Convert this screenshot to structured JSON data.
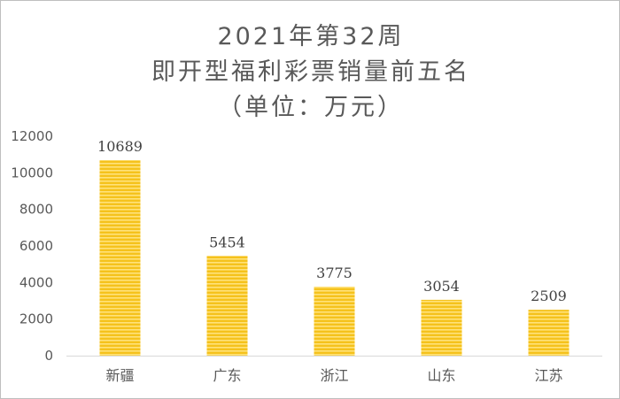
{
  "chart_data": {
    "type": "bar",
    "title_lines": [
      "2021年第32周",
      "即开型福利彩票销量前五名",
      "（单位：万元）"
    ],
    "categories": [
      "新疆",
      "广东",
      "浙江",
      "山东",
      "江苏"
    ],
    "values": [
      10689,
      5454,
      3775,
      3054,
      2509
    ],
    "data_labels": [
      "10689",
      "5454",
      "3775",
      "3054",
      "2509"
    ],
    "y_ticks": [
      0,
      2000,
      4000,
      6000,
      8000,
      10000,
      12000
    ],
    "ylim": [
      0,
      12000
    ],
    "grid": false,
    "legend": "none",
    "bar_color": "#f5c21c",
    "bar_stripe_color": "#ffe27a"
  }
}
